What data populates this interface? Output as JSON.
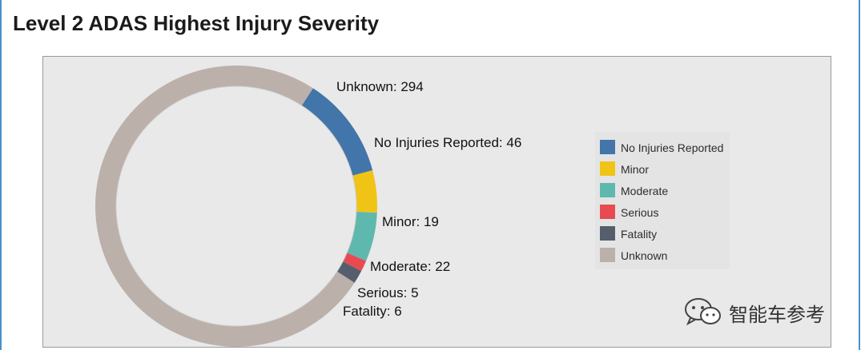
{
  "title": "Level 2 ADAS Highest Injury Severity",
  "chart_data": {
    "type": "pie",
    "donut": true,
    "categories": [
      "No Injuries Reported",
      "Minor",
      "Moderate",
      "Serious",
      "Fatality",
      "Unknown"
    ],
    "values": [
      46,
      19,
      22,
      5,
      6,
      294
    ],
    "colors": [
      "#4275a9",
      "#f0c417",
      "#5fb8ad",
      "#e84a52",
      "#555e6c",
      "#bbb0aa"
    ],
    "labels": [
      "No Injuries Reported: 46",
      "Minor: 19",
      "Moderate: 22",
      "Serious: 5",
      "Fatality: 6",
      "Unknown: 294"
    ],
    "legend": [
      "No Injuries Reported",
      "Minor",
      "Moderate",
      "Serious",
      "Fatality",
      "Unknown"
    ],
    "legend_position": "right"
  },
  "watermark": {
    "text": "智能车参考",
    "icon": "wechat-icon"
  }
}
